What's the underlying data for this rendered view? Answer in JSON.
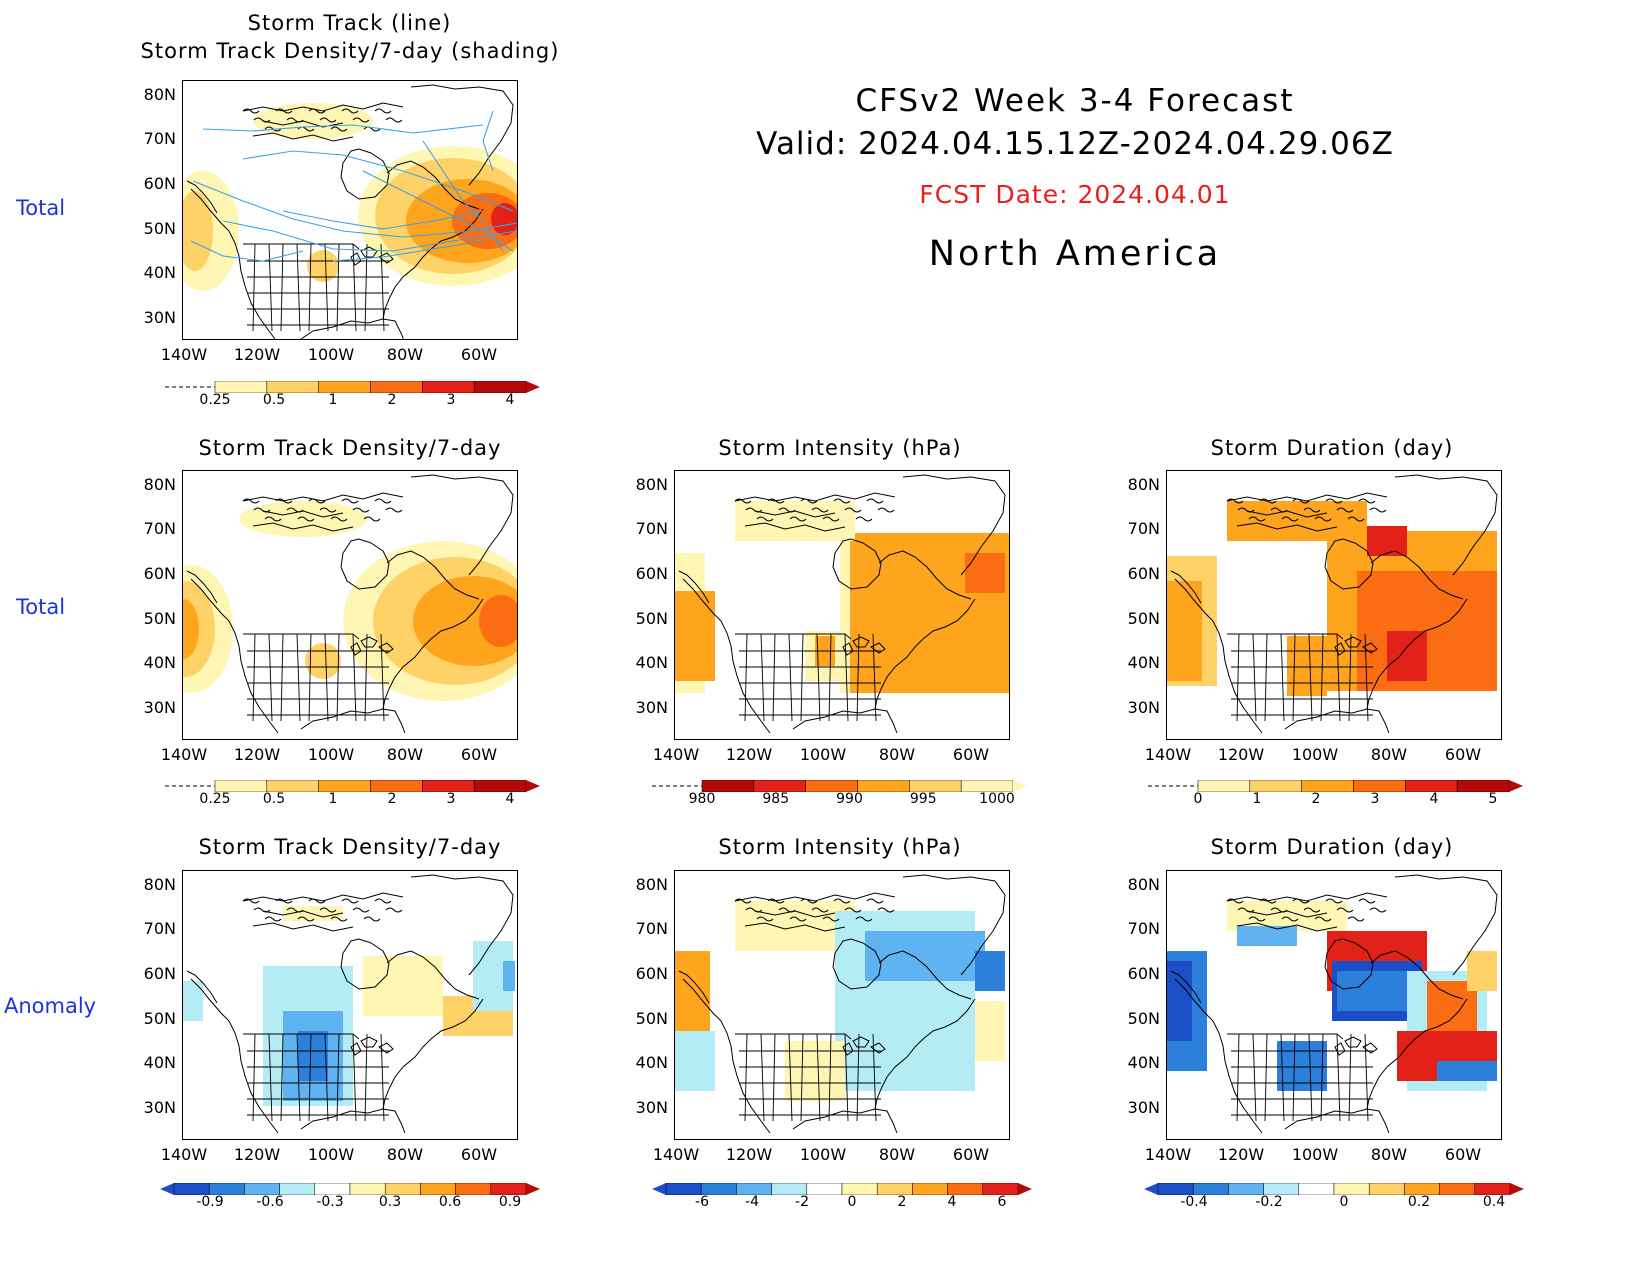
{
  "header": {
    "title_line1": "CFSv2  Week 3-4 Forecast",
    "title_line2": "Valid: 2024.04.15.12Z-2024.04.29.06Z",
    "fcst_date": "FCST Date: 2024.04.01",
    "region": "North America"
  },
  "row_labels": [
    "Total",
    "Total",
    "Anomaly"
  ],
  "axes": {
    "lat_labels": [
      "80N",
      "70N",
      "60N",
      "50N",
      "40N",
      "30N"
    ],
    "lon_labels": [
      "140W",
      "120W",
      "100W",
      "80W",
      "60W"
    ]
  },
  "panels": {
    "p1": {
      "title_line1": "Storm Track (line)",
      "title_line2": "Storm Track Density/7-day (shading)",
      "colorbar": [
        "0.25",
        "0.5",
        "1",
        "2",
        "3",
        "4"
      ]
    },
    "p2": {
      "title": "Storm Track Density/7-day",
      "colorbar": [
        "0.25",
        "0.5",
        "1",
        "2",
        "3",
        "4"
      ]
    },
    "p3": {
      "title": "Storm Intensity (hPa)",
      "colorbar": [
        "980",
        "985",
        "990",
        "995",
        "1000"
      ]
    },
    "p4": {
      "title": "Storm Duration (day)",
      "colorbar": [
        "0",
        "1",
        "2",
        "3",
        "4",
        "5"
      ]
    },
    "p5": {
      "title": "Storm Track Density/7-day",
      "colorbar": [
        "-0.9",
        "-0.6",
        "-0.3",
        "0.3",
        "0.6",
        "0.9"
      ]
    },
    "p6": {
      "title": "Storm Intensity (hPa)",
      "colorbar": [
        "-6",
        "-4",
        "-2",
        "0",
        "2",
        "4",
        "6"
      ]
    },
    "p7": {
      "title": "Storm Duration (day)",
      "colorbar": [
        "-0.4",
        "-0.2",
        "0",
        "0.2",
        "0.4"
      ]
    }
  },
  "colors": {
    "row_label": "#1a35e0",
    "fcst_date": "#e8201b",
    "pale_yellow": "#fff6b3",
    "light_orange": "#fed266",
    "orange": "#fea41d",
    "dark_orange": "#fa6d12",
    "red": "#e22218",
    "dark_red": "#b40b0a",
    "light_blue": "#b4ecf5",
    "mid_blue": "#5fb3f1",
    "blue": "#2d7fdc",
    "dark_blue": "#1a4fc7",
    "storm_track_line": "#3aa3e8"
  }
}
